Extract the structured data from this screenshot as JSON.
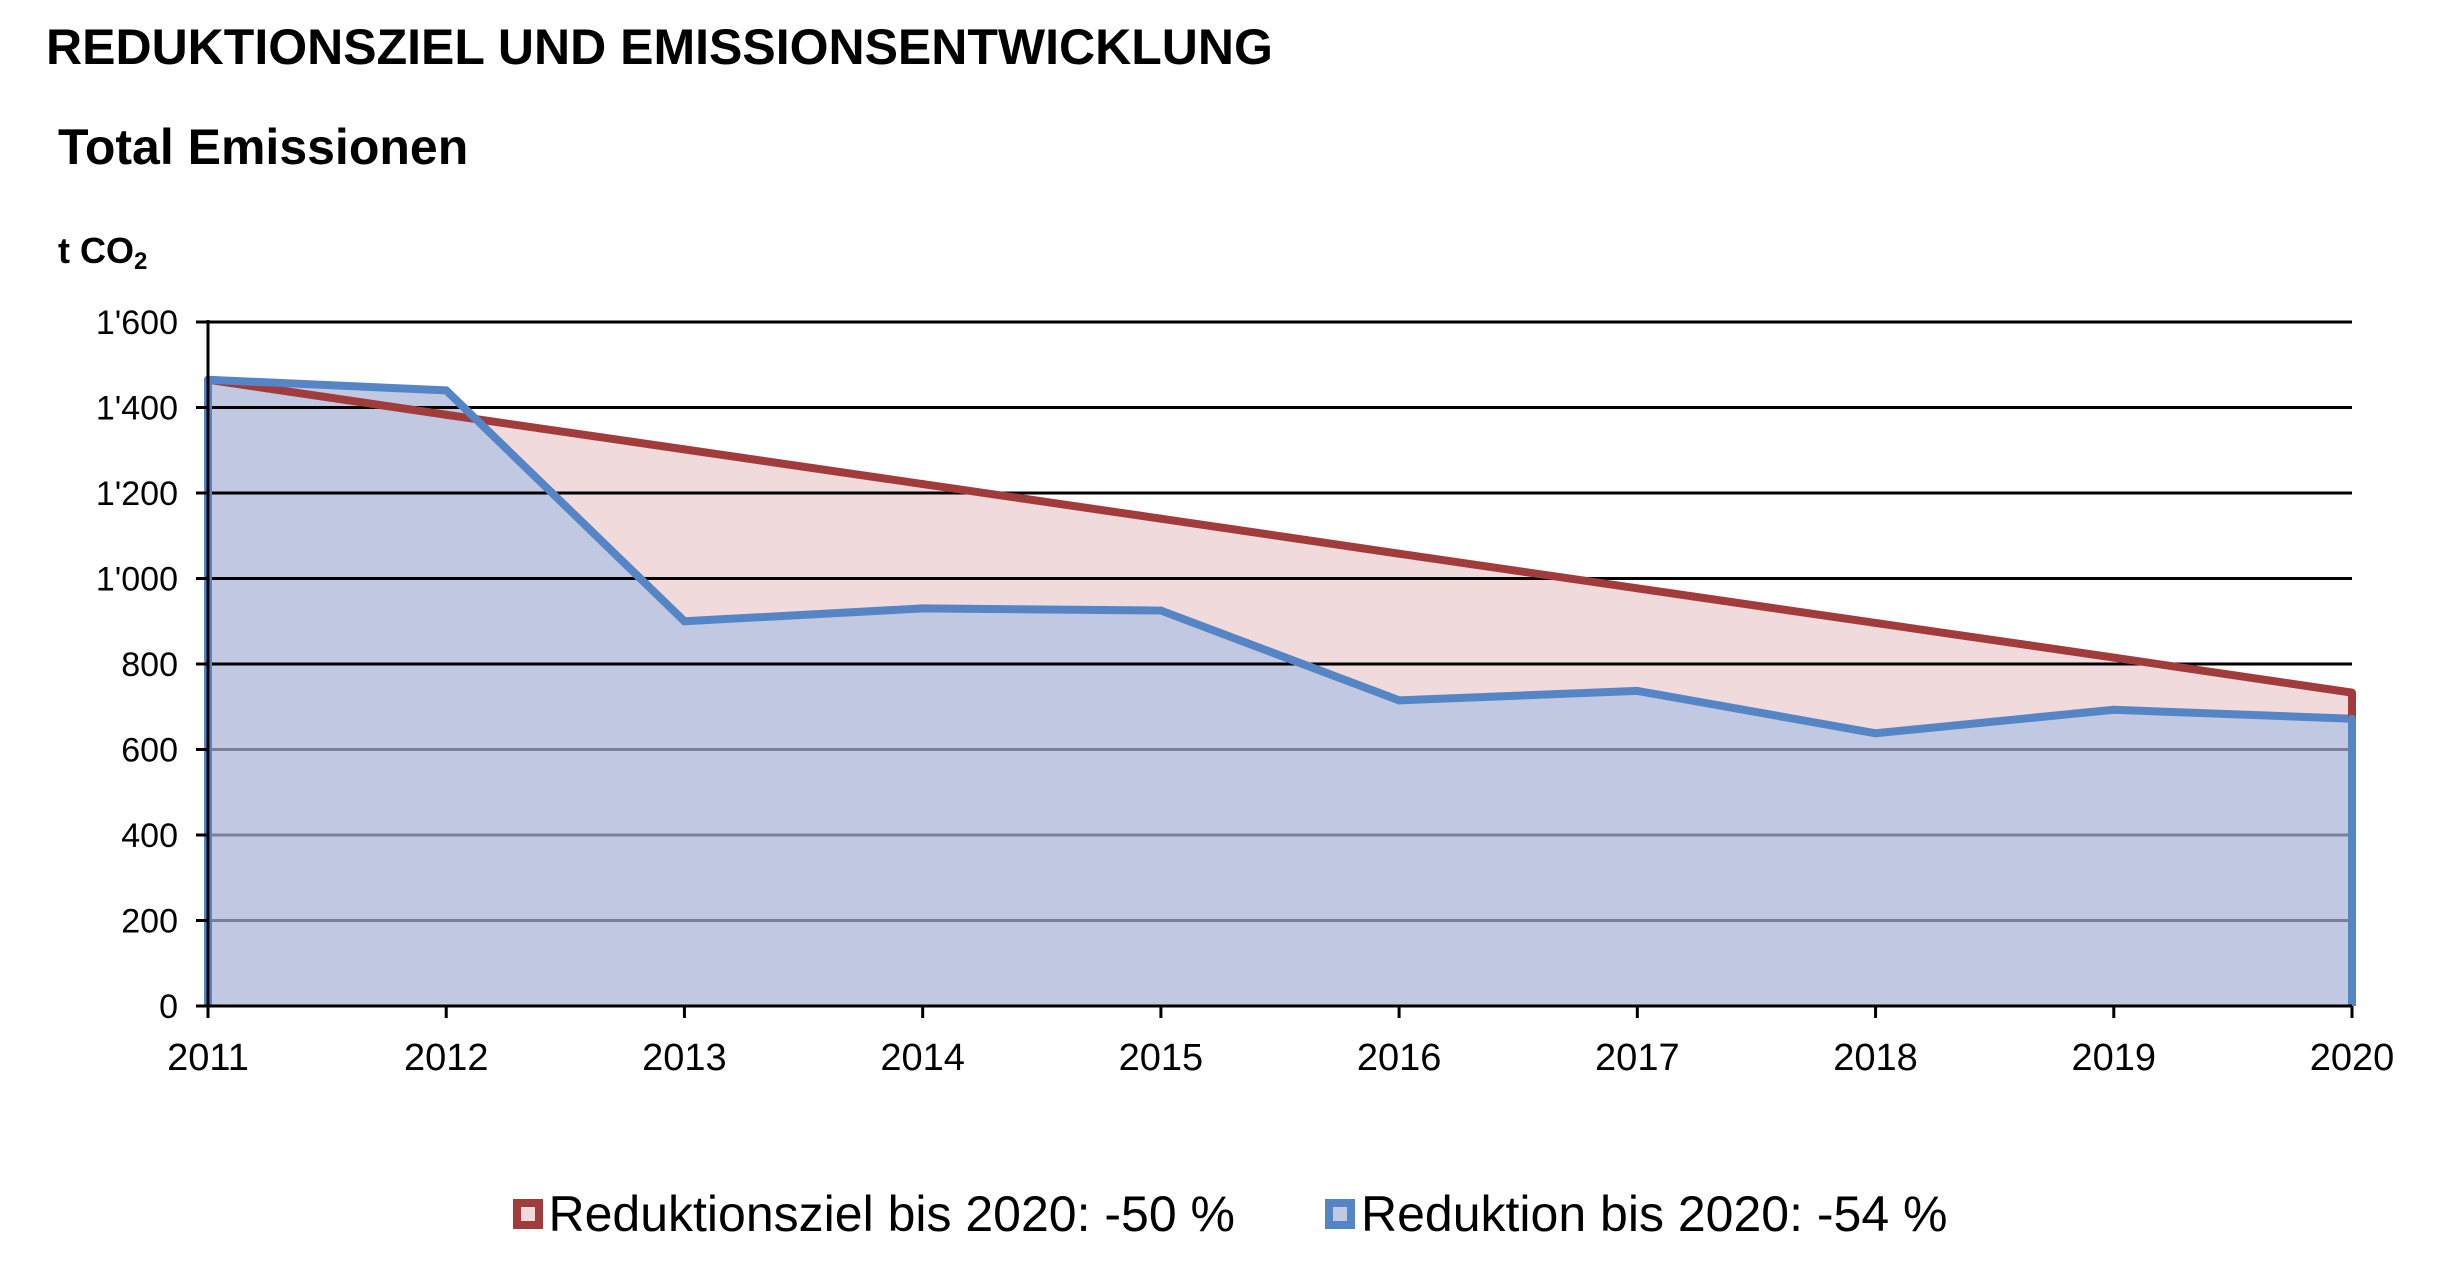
{
  "page_heading": "REDUKTIONSZIEL UND EMISSIONSENTWICKLUNG",
  "colors": {
    "target_line": "#A23B3B",
    "target_fill": "#F1DADB",
    "actual_line": "#5585C5",
    "actual_fill": "#C0C8E2",
    "grid_dark": "#000000",
    "grid_light": "#7D7F99"
  },
  "chart_data": {
    "type": "area",
    "title": "Total Emissionen",
    "ylabel": "t CO",
    "ylabel_subscript": "2",
    "xlabel": "",
    "x": [
      "2011",
      "2012",
      "2013",
      "2014",
      "2015",
      "2016",
      "2017",
      "2018",
      "2019",
      "2020"
    ],
    "ylim": [
      0,
      1600
    ],
    "yticks": [
      0,
      200,
      400,
      600,
      800,
      1000,
      1200,
      1400,
      1600
    ],
    "ytick_labels": [
      "0",
      "200",
      "400",
      "600",
      "800",
      "1'000",
      "1'200",
      "1'400",
      "1'600"
    ],
    "grid": true,
    "series": [
      {
        "name": "Reduktionsziel bis 2020: -50 %",
        "color": "#A23B3B",
        "fill": "#F1DADB",
        "values": [
          1465,
          1383,
          1302,
          1221,
          1140,
          1058,
          977,
          896,
          815,
          733
        ]
      },
      {
        "name": "Reduktion bis 2020: -54 %",
        "color": "#5585C5",
        "fill": "#C0C8E2",
        "values": [
          1465,
          1440,
          900,
          930,
          925,
          715,
          737,
          638,
          693,
          672
        ]
      }
    ],
    "legend_position": "bottom"
  }
}
